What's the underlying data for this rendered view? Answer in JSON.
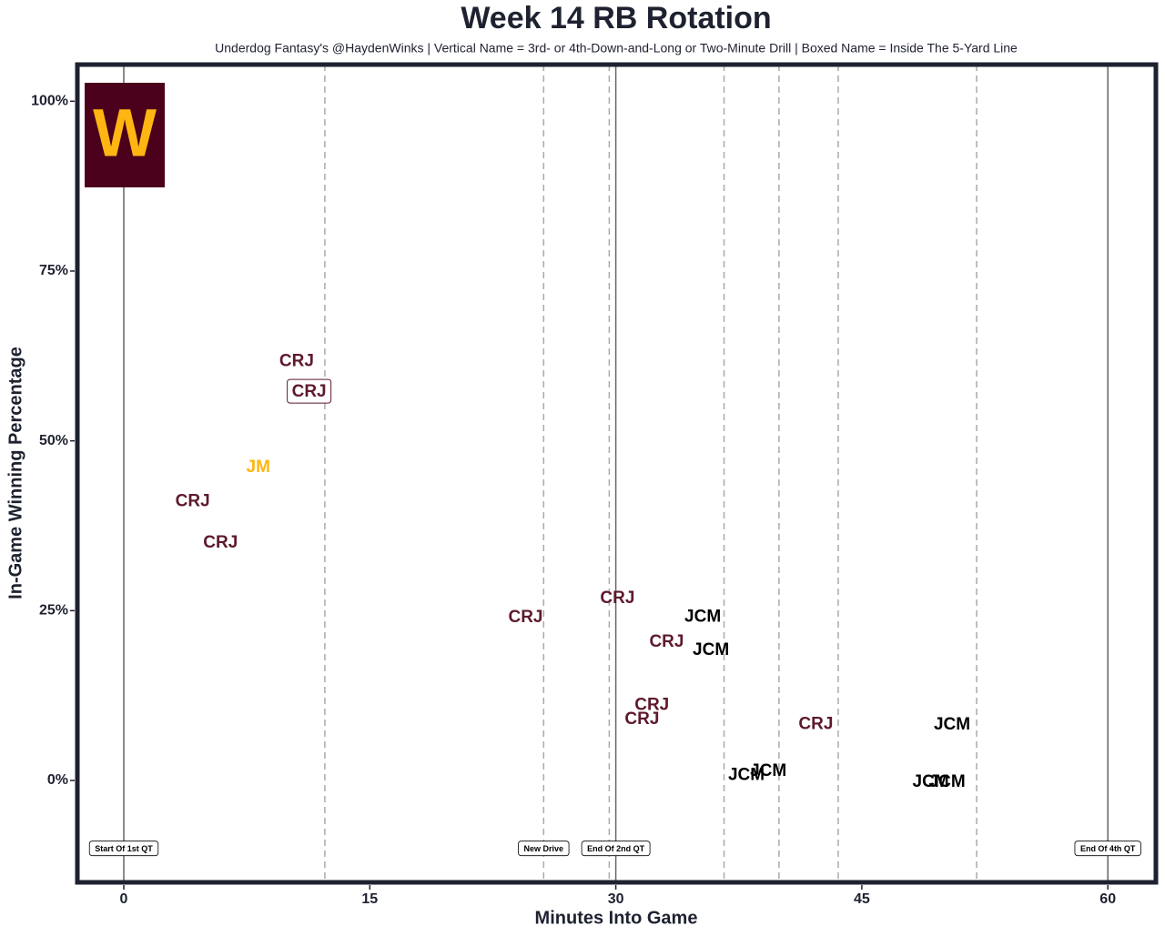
{
  "chart_data": {
    "type": "scatter",
    "title": "Week 14 RB Rotation",
    "subtitle": "Underdog Fantasy's @HaydenWinks | Vertical Name = 3rd- or 4th-Down-and-Long or Two-Minute Drill | Boxed Name = Inside The 5-Yard Line",
    "x_label": "Minutes Into Game",
    "y_label": "In-Game Winning Percentage",
    "logo_text": "W",
    "xlim": [
      -2.83,
      62.93
    ],
    "ylim": [
      -15.0,
      105.4
    ],
    "xticks": [
      0,
      15,
      30,
      45,
      60
    ],
    "yticks": [
      {
        "value": 0,
        "label": "0%"
      },
      {
        "value": 25,
        "label": "25%"
      },
      {
        "value": 50,
        "label": "50%"
      },
      {
        "value": 75,
        "label": "75%"
      },
      {
        "value": 100,
        "label": "100%"
      }
    ],
    "events": [
      {
        "x": 0,
        "style": "solid",
        "label": "Start Of 1st QT"
      },
      {
        "x": 12.26,
        "style": "dashed"
      },
      {
        "x": 25.6,
        "style": "dashed",
        "label": "New Drive"
      },
      {
        "x": 29.6,
        "style": "dashed"
      },
      {
        "x": 30,
        "style": "solid",
        "label": "End Of 2nd QT"
      },
      {
        "x": 36.6,
        "style": "dashed"
      },
      {
        "x": 39.95,
        "style": "dashed"
      },
      {
        "x": 43.56,
        "style": "dashed"
      },
      {
        "x": 52.0,
        "style": "dashed"
      },
      {
        "x": 60,
        "style": "solid",
        "label": "End Of 4th QT"
      }
    ],
    "event_label_y": -10,
    "series": [
      {
        "name": "CRJ",
        "color": "#5e1a2c",
        "x": [
          10.54,
          11.3,
          4.2,
          5.9,
          24.5,
          30.1,
          33.1,
          32.2,
          31.6,
          42.2
        ],
        "values": [
          61.8,
          57.3,
          41.2,
          35.1,
          24.1,
          26.9,
          20.5,
          11.2,
          9.1,
          8.4
        ],
        "boxed": [
          false,
          true,
          false,
          false,
          false,
          false,
          false,
          false,
          false,
          false
        ]
      },
      {
        "name": "JM",
        "color": "#ffb612",
        "x": [
          8.2
        ],
        "values": [
          46.2
        ],
        "boxed": [
          false
        ]
      },
      {
        "name": "JCM",
        "color": "#000000",
        "x": [
          35.3,
          35.8,
          50.5,
          37.96,
          39.3,
          49.2,
          50.2
        ],
        "values": [
          24.2,
          19.3,
          8.3,
          0.9,
          1.5,
          -0.1,
          -0.1
        ],
        "boxed": [
          false,
          false,
          false,
          false,
          false,
          false,
          false
        ]
      }
    ]
  }
}
